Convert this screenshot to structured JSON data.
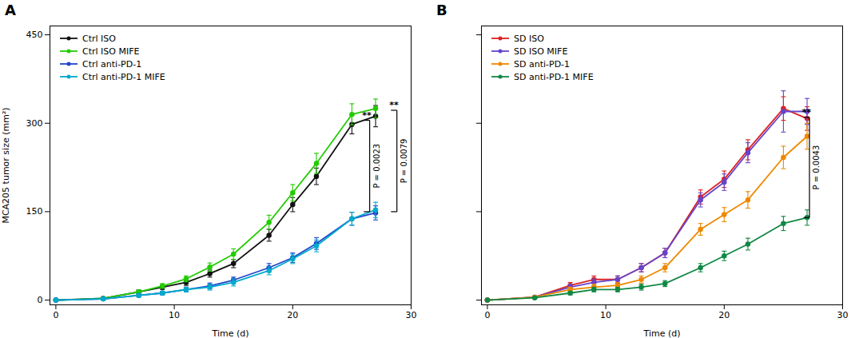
{
  "chart_data": [
    {
      "type": "line",
      "title": "A",
      "xlabel": "Time (d)",
      "ylabel": "MCA205 tumor size (mm²)",
      "x": [
        0,
        4,
        7,
        9,
        11,
        13,
        15,
        18,
        20,
        22,
        25,
        27
      ],
      "xlim": [
        -0.5,
        30
      ],
      "ylim": [
        -8,
        465
      ],
      "xticks": [
        0,
        10,
        20,
        30
      ],
      "yticks": [
        0,
        150,
        300,
        450
      ],
      "legend": "upper left",
      "series": [
        {
          "name": "Ctrl ISO",
          "color": "#111111",
          "values": [
            0,
            3,
            14,
            22,
            30,
            45,
            62,
            110,
            162,
            210,
            298,
            312
          ],
          "yerr": [
            0,
            1,
            3,
            4,
            5,
            6,
            7,
            10,
            12,
            14,
            16,
            18
          ]
        },
        {
          "name": "Ctrl ISO MIFE",
          "color": "#22cc00",
          "values": [
            0,
            3,
            14,
            24,
            36,
            56,
            78,
            132,
            182,
            232,
            315,
            325
          ],
          "yerr": [
            0,
            1,
            3,
            4,
            5,
            7,
            9,
            12,
            14,
            17,
            18,
            16
          ]
        },
        {
          "name": "Ctrl anti-PD-1",
          "color": "#2244cc",
          "values": [
            0,
            2,
            8,
            12,
            18,
            24,
            34,
            55,
            72,
            96,
            138,
            148
          ],
          "yerr": [
            0,
            1,
            2,
            3,
            4,
            5,
            5,
            7,
            8,
            10,
            11,
            12
          ]
        },
        {
          "name": "Ctrl anti-PD-1 MIFE",
          "color": "#00aacc",
          "values": [
            0,
            2,
            8,
            12,
            18,
            22,
            30,
            50,
            70,
            92,
            138,
            153
          ],
          "yerr": [
            0,
            1,
            2,
            3,
            4,
            5,
            6,
            7,
            8,
            10,
            11,
            13
          ]
        }
      ],
      "annotations": [
        {
          "x": 26.5,
          "y_bottom": 150,
          "y_top": 305,
          "stars": "**",
          "text": "P = 0.0023"
        },
        {
          "x": 28.8,
          "y_bottom": 150,
          "y_top": 322,
          "stars": "**",
          "text": "P = 0.0079"
        }
      ]
    },
    {
      "type": "line",
      "title": "B",
      "xlabel": "Time (d)",
      "x": [
        0,
        4,
        7,
        9,
        11,
        13,
        15,
        18,
        20,
        22,
        25,
        27
      ],
      "xlim": [
        -0.5,
        30
      ],
      "ylim": [
        -8,
        465
      ],
      "xticks": [
        0,
        10,
        20,
        30
      ],
      "yticks": [
        0,
        150,
        300,
        450
      ],
      "tick_labels": "x",
      "legend": "upper left",
      "series": [
        {
          "name": "SD ISO",
          "color": "#dd2222",
          "values": [
            0,
            5,
            25,
            35,
            35,
            55,
            80,
            175,
            205,
            255,
            325,
            308
          ],
          "yerr": [
            0,
            1,
            5,
            6,
            6,
            7,
            8,
            12,
            14,
            17,
            20,
            20
          ]
        },
        {
          "name": "SD ISO MIFE",
          "color": "#6644cc",
          "values": [
            0,
            5,
            22,
            30,
            35,
            55,
            80,
            170,
            200,
            250,
            320,
            320
          ],
          "yerr": [
            0,
            1,
            5,
            6,
            6,
            7,
            8,
            12,
            14,
            17,
            35,
            22
          ]
        },
        {
          "name": "SD anti-PD-1",
          "color": "#ee8800",
          "values": [
            0,
            5,
            18,
            22,
            25,
            35,
            55,
            120,
            145,
            170,
            242,
            278
          ],
          "yerr": [
            0,
            1,
            4,
            5,
            5,
            6,
            7,
            10,
            12,
            14,
            19,
            22
          ]
        },
        {
          "name": "SD anti-PD-1 MIFE",
          "color": "#118844",
          "values": [
            0,
            4,
            12,
            18,
            18,
            22,
            28,
            55,
            75,
            95,
            130,
            140
          ],
          "yerr": [
            0,
            1,
            3,
            4,
            4,
            5,
            5,
            7,
            8,
            10,
            12,
            13
          ]
        }
      ],
      "annotations": [
        {
          "x": 27.2,
          "y_bottom": 140,
          "y_top": 310,
          "stars": "**",
          "text": "P = 0.0043"
        }
      ]
    }
  ]
}
